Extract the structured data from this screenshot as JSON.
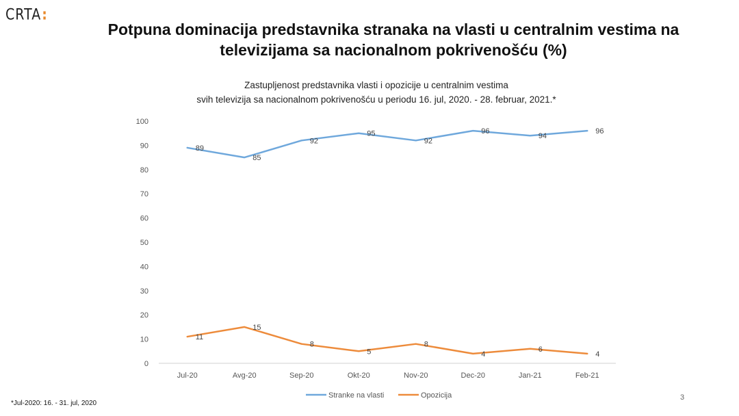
{
  "slide": {
    "logo_text": "CRTA",
    "logo_mark": ":",
    "title_line1": "Potpuna dominacija predstavnika stranaka na vlasti u centralnim vestima na",
    "title_line2": "televizijama sa nacionalnom pokrivenošću (%)",
    "footnote": "*Jul-2020: 16. - 31.  jul, 2020",
    "page_number": "3"
  },
  "chart_data": {
    "type": "line",
    "title_line1": "Zastupljenost predstavnika vlasti i opozicije u centralnim vestima",
    "title_line2": "svih televizija sa nacionalnom pokrivenošću u periodu 16. jul, 2020. - 28. februar,  2021.*",
    "categories": [
      "Jul-20",
      "Avg-20",
      "Sep-20",
      "Okt-20",
      "Nov-20",
      "Dec-20",
      "Jan-21",
      "Feb-21"
    ],
    "ylim": [
      0,
      100
    ],
    "yticks": [
      0,
      10,
      20,
      30,
      40,
      50,
      60,
      70,
      80,
      90,
      100
    ],
    "grid": false,
    "legend_position": "bottom",
    "series": [
      {
        "name": "Stranke na vlasti",
        "color": "#6fa8dc",
        "values": [
          89,
          85,
          92,
          95,
          92,
          96,
          94,
          96
        ],
        "labels": [
          "89",
          "85",
          "92",
          "95",
          "92",
          "96",
          "94",
          "96"
        ]
      },
      {
        "name": "Opozicija",
        "color": "#ed8b3b",
        "values": [
          11,
          15,
          8,
          5,
          8,
          4,
          6,
          4
        ],
        "labels": [
          "11",
          "15",
          "8",
          "5",
          "8",
          "4",
          "6",
          "4"
        ]
      }
    ]
  }
}
